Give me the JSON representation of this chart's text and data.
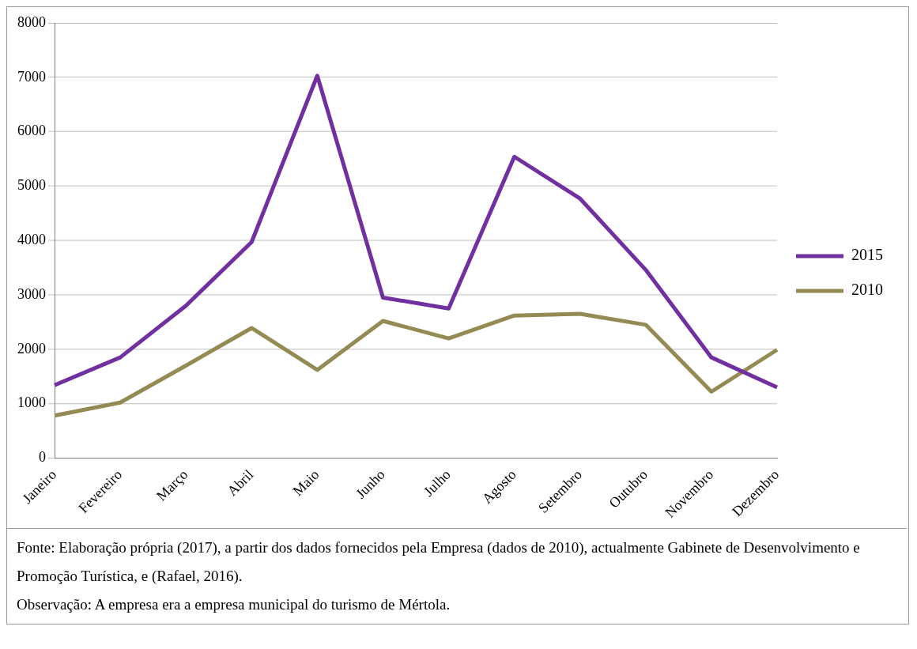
{
  "chart_data": {
    "type": "line",
    "categories": [
      "Janeiro",
      "Fevereiro",
      "Março",
      "Abril",
      "Maio",
      "Junho",
      "Julho",
      "Agosto",
      "Setembro",
      "Outubro",
      "Novembro",
      "Dezembro"
    ],
    "series": [
      {
        "name": "2015",
        "color": "#7030a0",
        "values": [
          1340,
          1850,
          2800,
          3970,
          7030,
          2950,
          2750,
          5540,
          4770,
          3460,
          1850,
          1300
        ]
      },
      {
        "name": "2010",
        "color": "#948a54",
        "values": [
          780,
          1020,
          1700,
          2390,
          1620,
          2520,
          2200,
          2620,
          2650,
          2450,
          1220,
          1990
        ]
      }
    ],
    "ylim": [
      0,
      8000
    ],
    "yticks": [
      0,
      1000,
      2000,
      3000,
      4000,
      5000,
      6000,
      7000,
      8000
    ],
    "grid": "y",
    "legend": "right",
    "marker": "none",
    "line_style": "solid",
    "annotations": [
      "Fonte: Elaboração própria (2017), a partir dos dados fornecidos pela Empresa (dados de 2010), actualmente Gabinete de Desenvolvimento e Promoção Turística, e (Rafael, 2016).",
      "Observação: A empresa era a empresa municipal do turismo de Mértola."
    ]
  }
}
